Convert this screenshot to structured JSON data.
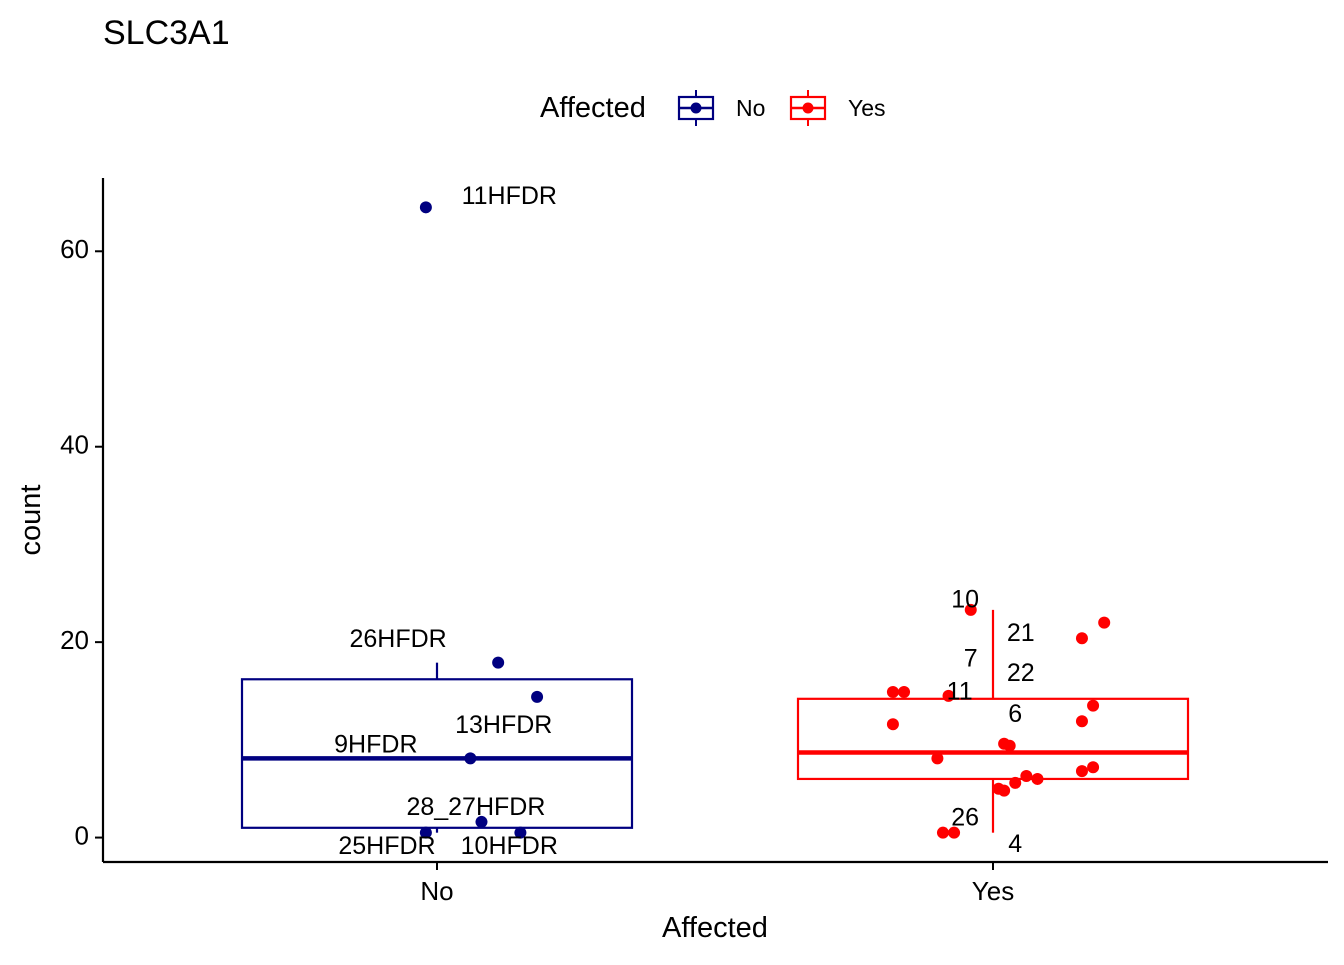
{
  "chart_data": {
    "type": "box",
    "title": "SLC3A1",
    "xlabel": "Affected",
    "ylabel": "count",
    "ylim": [
      -2.5,
      67.5
    ],
    "yticks": [
      0,
      20,
      40,
      60
    ],
    "grid": false,
    "legend": {
      "title": "Affected",
      "position": "top",
      "entries": [
        {
          "label": "No",
          "color": "#000080"
        },
        {
          "label": "Yes",
          "color": "#FF0000"
        }
      ]
    },
    "categories": [
      "No",
      "Yes"
    ],
    "boxes": [
      {
        "category": "No",
        "color": "#000080",
        "whisker_low": 0.5,
        "q1": 1.0,
        "median": 8.1,
        "q3": 16.2,
        "whisker_high": 17.9
      },
      {
        "category": "Yes",
        "color": "#FF0000",
        "whisker_low": 0.5,
        "q1": 6.0,
        "median": 8.7,
        "q3": 14.2,
        "whisker_high": 23.3
      }
    ],
    "points": [
      {
        "category": "No",
        "jitter": -0.02,
        "y": 64.5
      },
      {
        "category": "No",
        "jitter": 0.11,
        "y": 17.9
      },
      {
        "category": "No",
        "jitter": 0.18,
        "y": 14.4
      },
      {
        "category": "No",
        "jitter": 0.06,
        "y": 8.1
      },
      {
        "category": "No",
        "jitter": 0.08,
        "y": 1.6
      },
      {
        "category": "No",
        "jitter": -0.02,
        "y": 0.5
      },
      {
        "category": "No",
        "jitter": 0.15,
        "y": 0.5
      },
      {
        "category": "Yes",
        "jitter": -0.04,
        "y": 23.3
      },
      {
        "category": "Yes",
        "jitter": 0.2,
        "y": 22.0
      },
      {
        "category": "Yes",
        "jitter": 0.16,
        "y": 20.4
      },
      {
        "category": "Yes",
        "jitter": -0.18,
        "y": 14.9
      },
      {
        "category": "Yes",
        "jitter": -0.16,
        "y": 14.9
      },
      {
        "category": "Yes",
        "jitter": -0.08,
        "y": 14.5
      },
      {
        "category": "Yes",
        "jitter": 0.18,
        "y": 13.5
      },
      {
        "category": "Yes",
        "jitter": 0.16,
        "y": 11.9
      },
      {
        "category": "Yes",
        "jitter": -0.18,
        "y": 11.6
      },
      {
        "category": "Yes",
        "jitter": 0.02,
        "y": 9.6
      },
      {
        "category": "Yes",
        "jitter": 0.03,
        "y": 9.4
      },
      {
        "category": "Yes",
        "jitter": -0.1,
        "y": 8.1
      },
      {
        "category": "Yes",
        "jitter": 0.18,
        "y": 7.2
      },
      {
        "category": "Yes",
        "jitter": 0.16,
        "y": 6.8
      },
      {
        "category": "Yes",
        "jitter": 0.06,
        "y": 6.3
      },
      {
        "category": "Yes",
        "jitter": 0.08,
        "y": 6.0
      },
      {
        "category": "Yes",
        "jitter": 0.04,
        "y": 5.6
      },
      {
        "category": "Yes",
        "jitter": 0.01,
        "y": 5.0
      },
      {
        "category": "Yes",
        "jitter": 0.02,
        "y": 4.8
      },
      {
        "category": "Yes",
        "jitter": -0.09,
        "y": 0.5
      },
      {
        "category": "Yes",
        "jitter": -0.07,
        "y": 0.5
      }
    ],
    "annotations": [
      {
        "text": "11HFDR",
        "category": "No",
        "xoff": 0.13,
        "y": 65.5,
        "anchor": "middle"
      },
      {
        "text": "26HFDR",
        "category": "No",
        "xoff": -0.07,
        "y": 20.2,
        "anchor": "middle"
      },
      {
        "text": "13HFDR",
        "category": "No",
        "xoff": 0.12,
        "y": 11.4,
        "anchor": "middle"
      },
      {
        "text": "9HFDR",
        "category": "No",
        "xoff": -0.11,
        "y": 9.4,
        "anchor": "middle"
      },
      {
        "text": "28_27HFDR",
        "category": "No",
        "xoff": 0.07,
        "y": 3.0,
        "anchor": "middle"
      },
      {
        "text": "25HFDR",
        "category": "No",
        "xoff": -0.09,
        "y": -1.0,
        "anchor": "middle"
      },
      {
        "text": "10HFDR",
        "category": "No",
        "xoff": 0.13,
        "y": -1.0,
        "anchor": "middle"
      },
      {
        "text": "10",
        "category": "Yes",
        "xoff": -0.05,
        "y": 24.2,
        "anchor": "middle"
      },
      {
        "text": "21",
        "category": "Yes",
        "xoff": 0.05,
        "y": 20.8,
        "anchor": "middle"
      },
      {
        "text": "7",
        "category": "Yes",
        "xoff": -0.04,
        "y": 18.2,
        "anchor": "middle"
      },
      {
        "text": "22",
        "category": "Yes",
        "xoff": 0.05,
        "y": 16.7,
        "anchor": "middle"
      },
      {
        "text": "11",
        "category": "Yes",
        "xoff": -0.06,
        "y": 14.8,
        "anchor": "middle"
      },
      {
        "text": "6",
        "category": "Yes",
        "xoff": 0.04,
        "y": 12.5,
        "anchor": "middle"
      },
      {
        "text": "26",
        "category": "Yes",
        "xoff": -0.05,
        "y": 1.9,
        "anchor": "middle"
      },
      {
        "text": "4",
        "category": "Yes",
        "xoff": 0.04,
        "y": -0.8,
        "anchor": "middle"
      }
    ]
  }
}
